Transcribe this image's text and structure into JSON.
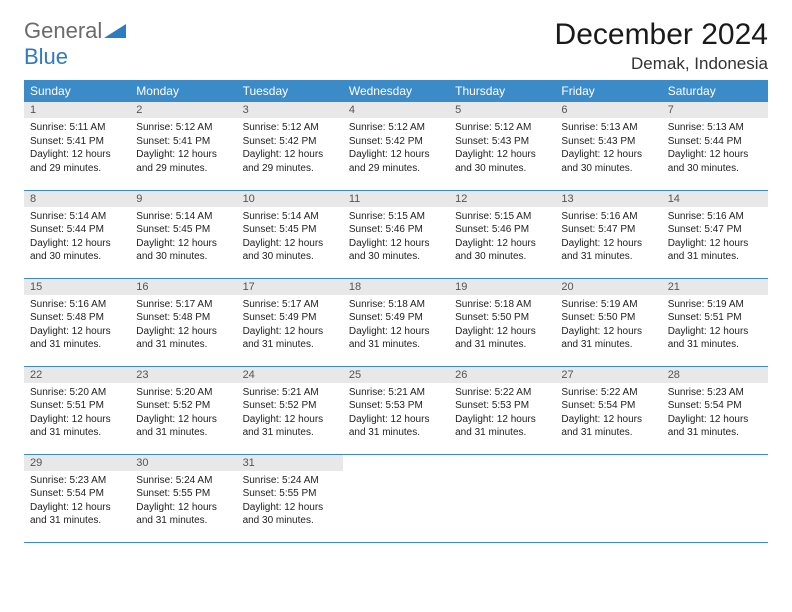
{
  "logo": {
    "general": "General",
    "blue": "Blue"
  },
  "title": "December 2024",
  "location": "Demak, Indonesia",
  "colors": {
    "header_bg": "#3b8bc9",
    "header_text": "#ffffff",
    "daynum_bg": "#e8e8e8",
    "border": "#3b8bc9",
    "logo_gray": "#6b6b6b",
    "logo_blue": "#2d7bc0"
  },
  "days_of_week": [
    "Sunday",
    "Monday",
    "Tuesday",
    "Wednesday",
    "Thursday",
    "Friday",
    "Saturday"
  ],
  "cells": [
    {
      "n": "1",
      "sr": "5:11 AM",
      "ss": "5:41 PM",
      "dl": "12 hours and 29 minutes."
    },
    {
      "n": "2",
      "sr": "5:12 AM",
      "ss": "5:41 PM",
      "dl": "12 hours and 29 minutes."
    },
    {
      "n": "3",
      "sr": "5:12 AM",
      "ss": "5:42 PM",
      "dl": "12 hours and 29 minutes."
    },
    {
      "n": "4",
      "sr": "5:12 AM",
      "ss": "5:42 PM",
      "dl": "12 hours and 29 minutes."
    },
    {
      "n": "5",
      "sr": "5:12 AM",
      "ss": "5:43 PM",
      "dl": "12 hours and 30 minutes."
    },
    {
      "n": "6",
      "sr": "5:13 AM",
      "ss": "5:43 PM",
      "dl": "12 hours and 30 minutes."
    },
    {
      "n": "7",
      "sr": "5:13 AM",
      "ss": "5:44 PM",
      "dl": "12 hours and 30 minutes."
    },
    {
      "n": "8",
      "sr": "5:14 AM",
      "ss": "5:44 PM",
      "dl": "12 hours and 30 minutes."
    },
    {
      "n": "9",
      "sr": "5:14 AM",
      "ss": "5:45 PM",
      "dl": "12 hours and 30 minutes."
    },
    {
      "n": "10",
      "sr": "5:14 AM",
      "ss": "5:45 PM",
      "dl": "12 hours and 30 minutes."
    },
    {
      "n": "11",
      "sr": "5:15 AM",
      "ss": "5:46 PM",
      "dl": "12 hours and 30 minutes."
    },
    {
      "n": "12",
      "sr": "5:15 AM",
      "ss": "5:46 PM",
      "dl": "12 hours and 30 minutes."
    },
    {
      "n": "13",
      "sr": "5:16 AM",
      "ss": "5:47 PM",
      "dl": "12 hours and 31 minutes."
    },
    {
      "n": "14",
      "sr": "5:16 AM",
      "ss": "5:47 PM",
      "dl": "12 hours and 31 minutes."
    },
    {
      "n": "15",
      "sr": "5:16 AM",
      "ss": "5:48 PM",
      "dl": "12 hours and 31 minutes."
    },
    {
      "n": "16",
      "sr": "5:17 AM",
      "ss": "5:48 PM",
      "dl": "12 hours and 31 minutes."
    },
    {
      "n": "17",
      "sr": "5:17 AM",
      "ss": "5:49 PM",
      "dl": "12 hours and 31 minutes."
    },
    {
      "n": "18",
      "sr": "5:18 AM",
      "ss": "5:49 PM",
      "dl": "12 hours and 31 minutes."
    },
    {
      "n": "19",
      "sr": "5:18 AM",
      "ss": "5:50 PM",
      "dl": "12 hours and 31 minutes."
    },
    {
      "n": "20",
      "sr": "5:19 AM",
      "ss": "5:50 PM",
      "dl": "12 hours and 31 minutes."
    },
    {
      "n": "21",
      "sr": "5:19 AM",
      "ss": "5:51 PM",
      "dl": "12 hours and 31 minutes."
    },
    {
      "n": "22",
      "sr": "5:20 AM",
      "ss": "5:51 PM",
      "dl": "12 hours and 31 minutes."
    },
    {
      "n": "23",
      "sr": "5:20 AM",
      "ss": "5:52 PM",
      "dl": "12 hours and 31 minutes."
    },
    {
      "n": "24",
      "sr": "5:21 AM",
      "ss": "5:52 PM",
      "dl": "12 hours and 31 minutes."
    },
    {
      "n": "25",
      "sr": "5:21 AM",
      "ss": "5:53 PM",
      "dl": "12 hours and 31 minutes."
    },
    {
      "n": "26",
      "sr": "5:22 AM",
      "ss": "5:53 PM",
      "dl": "12 hours and 31 minutes."
    },
    {
      "n": "27",
      "sr": "5:22 AM",
      "ss": "5:54 PM",
      "dl": "12 hours and 31 minutes."
    },
    {
      "n": "28",
      "sr": "5:23 AM",
      "ss": "5:54 PM",
      "dl": "12 hours and 31 minutes."
    },
    {
      "n": "29",
      "sr": "5:23 AM",
      "ss": "5:54 PM",
      "dl": "12 hours and 31 minutes."
    },
    {
      "n": "30",
      "sr": "5:24 AM",
      "ss": "5:55 PM",
      "dl": "12 hours and 31 minutes."
    },
    {
      "n": "31",
      "sr": "5:24 AM",
      "ss": "5:55 PM",
      "dl": "12 hours and 30 minutes."
    }
  ],
  "labels": {
    "sunrise": "Sunrise:",
    "sunset": "Sunset:",
    "daylight": "Daylight:"
  }
}
